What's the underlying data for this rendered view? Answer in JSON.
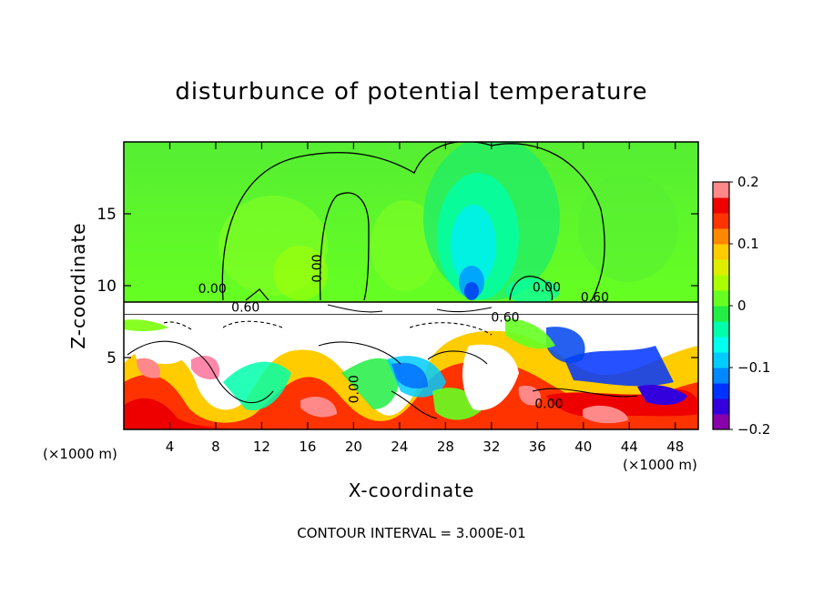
{
  "chart_data": {
    "type": "heatmap",
    "title": "disturbunce of potential temperature",
    "xlabel": "X-coordinate",
    "ylabel": "Z-coordinate",
    "x_unit_label": "(×1000 m)",
    "x_unit_label_right": "(×1000 m)",
    "xlim": [
      0,
      50
    ],
    "ylim": [
      0,
      20
    ],
    "x_ticks": [
      4,
      8,
      12,
      16,
      20,
      24,
      28,
      32,
      36,
      40,
      44,
      48
    ],
    "y_ticks": [
      5,
      10,
      15
    ],
    "colorbar": {
      "range": [
        -0.2,
        0.2
      ],
      "tick_values": [
        0.2,
        0.1,
        0,
        -0.1,
        -0.2
      ],
      "tick_labels": [
        "0.2",
        "0.1",
        "0",
        "−0.1",
        "−0.2"
      ],
      "colors": [
        "#8800aa",
        "#3300dd",
        "#0033ff",
        "#0088ff",
        "#00ccff",
        "#00ffee",
        "#00ffaa",
        "#22ee44",
        "#66ff22",
        "#aaff00",
        "#ddee00",
        "#ffcc00",
        "#ff8800",
        "#ff3300",
        "#ee0000",
        "#ff8888"
      ]
    },
    "contour_labels": [
      {
        "text": "0.00",
        "x": 7.7,
        "y": 9.5
      },
      {
        "text": "0.60",
        "x": 10.6,
        "y": 8.2
      },
      {
        "text": "0.00",
        "x": 17.2,
        "y": 11.2
      },
      {
        "text": "0.00",
        "x": 36.8,
        "y": 9.6
      },
      {
        "text": "0.60",
        "x": 41.0,
        "y": 8.9
      },
      {
        "text": "0.60",
        "x": 33.2,
        "y": 7.5
      },
      {
        "text": "0.00",
        "x": 20.4,
        "y": 2.8
      },
      {
        "text": "0.00",
        "x": 37.0,
        "y": 1.5
      }
    ],
    "contour_interval_text": "CONTOUR INTERVAL = 3.000E-01"
  }
}
